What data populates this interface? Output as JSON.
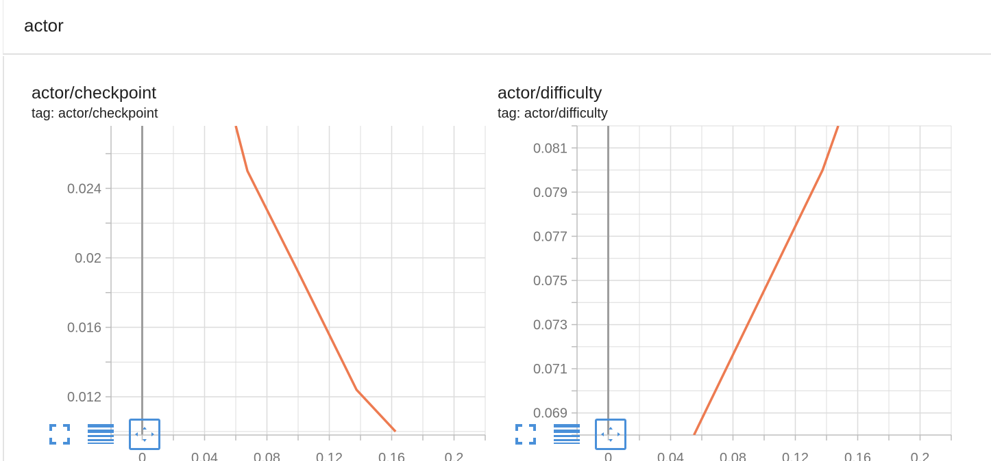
{
  "group": {
    "title": "actor"
  },
  "cards": [
    {
      "title": "actor/checkpoint",
      "tag": "tag: actor/checkpoint",
      "chart_data": {
        "type": "line",
        "title": "actor/checkpoint",
        "xlabel": "",
        "ylabel": "",
        "xlim": [
          -0.02,
          0.22
        ],
        "ylim": [
          0.0098,
          0.0276
        ],
        "x_ticks": [
          0,
          0.04,
          0.08,
          0.12,
          0.16,
          0.2
        ],
        "x_tick_labels": [
          "0",
          "0.04",
          "0.08",
          "0.12",
          "0.16",
          "0.2"
        ],
        "y_ticks": [
          0.012,
          0.016,
          0.02,
          0.024
        ],
        "y_tick_labels": [
          "0.012",
          "0.016",
          "0.02",
          "0.024"
        ],
        "grid": true,
        "series": [
          {
            "x": [
              0.06,
              0.0675,
              0.1,
              0.1375,
              0.1625
            ],
            "y": [
              0.0276,
              0.025,
              0.0192,
              0.0124,
              0.01
            ],
            "color": "#ed7b51"
          }
        ]
      }
    },
    {
      "title": "actor/difficulty",
      "tag": "tag: actor/difficulty",
      "chart_data": {
        "type": "line",
        "title": "actor/difficulty",
        "xlabel": "",
        "ylabel": "",
        "xlim": [
          -0.02,
          0.22
        ],
        "ylim": [
          0.068,
          0.082
        ],
        "x_ticks": [
          0,
          0.04,
          0.08,
          0.12,
          0.16,
          0.2
        ],
        "x_tick_labels": [
          "0",
          "0.04",
          "0.08",
          "0.12",
          "0.16",
          "0.2"
        ],
        "y_ticks": [
          0.069,
          0.071,
          0.073,
          0.075,
          0.077,
          0.079,
          0.081
        ],
        "y_tick_labels": [
          "0.069",
          "0.071",
          "0.073",
          "0.075",
          "0.077",
          "0.079",
          "0.081"
        ],
        "grid": true,
        "series": [
          {
            "x": [
              0.055,
              0.1375,
              0.1475
            ],
            "y": [
              0.068,
              0.08,
              0.082
            ],
            "color": "#ed7b51"
          }
        ]
      }
    }
  ],
  "controls": [
    {
      "name": "fit-to-screen",
      "icon": "expand-icon"
    },
    {
      "name": "toggle-log-scale",
      "icon": "list-lines-icon"
    },
    {
      "name": "fit-domain",
      "icon": "fit-domain-icon",
      "selected": true
    }
  ],
  "colors": {
    "accent": "#4a90d9",
    "line": "#ed7b51",
    "grid": "#dcdcdc",
    "zero_line": "#9e9e9e"
  }
}
